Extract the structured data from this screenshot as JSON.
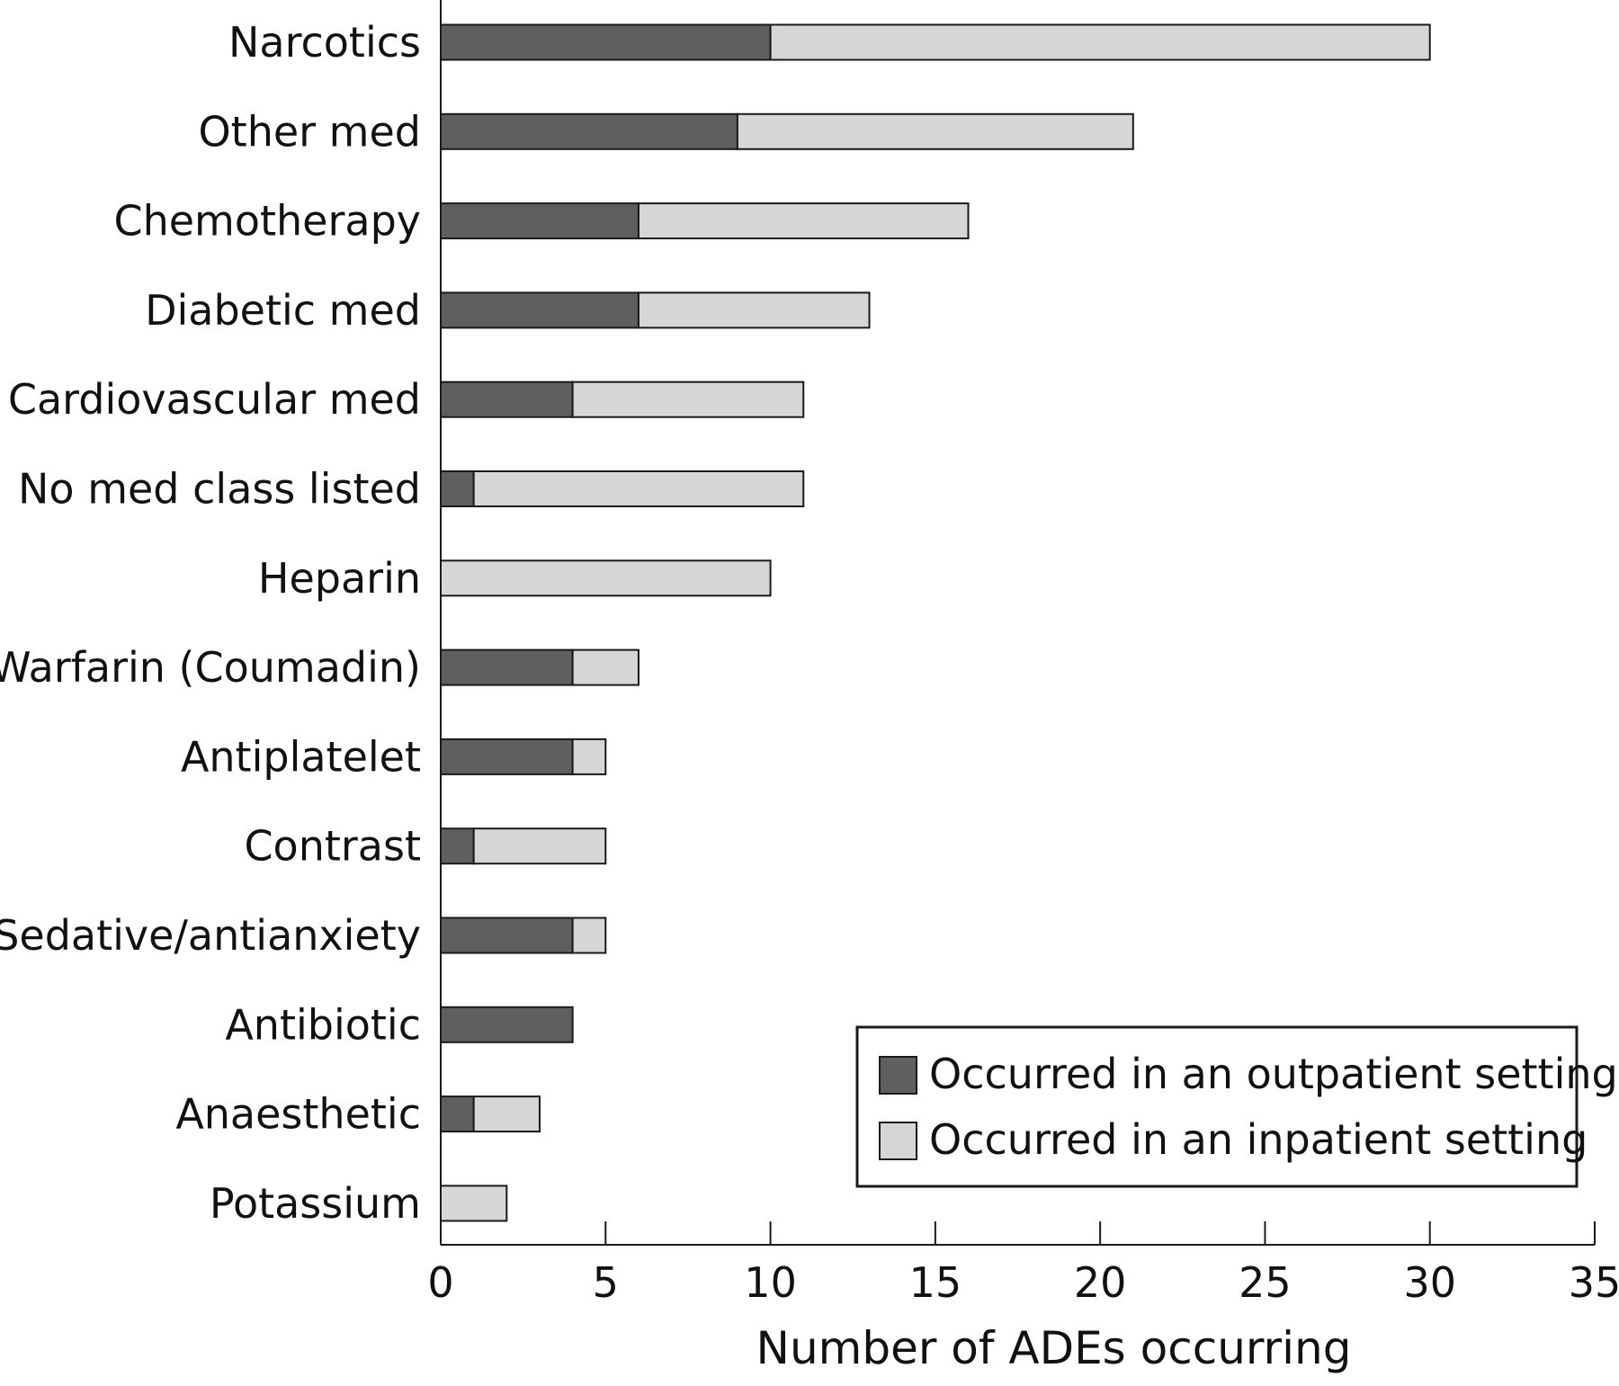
{
  "chart_data": {
    "type": "bar",
    "orientation": "horizontal",
    "stacked": true,
    "xlabel": "Number of ADEs occurring",
    "ylabel": "",
    "xlim": [
      0,
      35
    ],
    "xticks": [
      "0",
      "5",
      "10",
      "15",
      "20",
      "25",
      "30",
      "35"
    ],
    "categories": [
      "Narcotics",
      "Other med",
      "Chemotherapy",
      "Diabetic med",
      "Cardiovascular med",
      "No med class listed",
      "Heparin",
      "Warfarin (Coumadin)",
      "Antiplatelet",
      "Contrast",
      "Sedative/antianxiety",
      "Antibiotic",
      "Anaesthetic",
      "Potassium"
    ],
    "series": [
      {
        "name": "Occurred in an outpatient setting",
        "color": "#5f5f5f",
        "values": [
          10,
          9,
          6,
          6,
          4,
          1,
          0,
          4,
          4,
          1,
          4,
          4,
          1,
          0
        ]
      },
      {
        "name": "Occurred in an inpatient setting",
        "color": "#d6d6d6",
        "values": [
          20,
          12,
          10,
          7,
          7,
          10,
          10,
          2,
          1,
          4,
          1,
          0,
          2,
          2
        ]
      }
    ],
    "grid": false,
    "legend_position": "bottom-right"
  }
}
